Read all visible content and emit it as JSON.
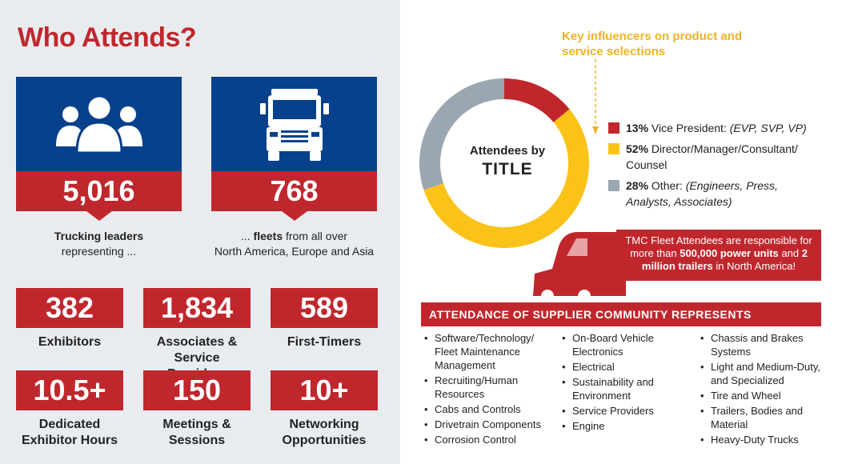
{
  "title": "Who Attends?",
  "cards": [
    {
      "icon": "people-group-icon",
      "number": "5,016",
      "caption_bold": "Trucking leaders",
      "caption_rest": "representing ..."
    },
    {
      "icon": "truck-front-icon",
      "number": "768",
      "caption_pre": "... ",
      "caption_bold": "fleets",
      "caption_rest": " from all over",
      "caption_line2": "North America, Europe and Asia"
    }
  ],
  "stats": [
    {
      "value": "382",
      "label": "Exhibitors"
    },
    {
      "value": "1,834",
      "label": "Associates & Service Providers"
    },
    {
      "value": "589",
      "label": "First-Timers"
    },
    {
      "value": "10.5+",
      "label": "Dedicated Exhibitor Hours"
    },
    {
      "value": "150",
      "label": "Meetings & Sessions"
    },
    {
      "value": "10+",
      "label": "Networking Opportunities"
    }
  ],
  "key_influencers": "Key influencers on product and service selections",
  "donut": {
    "label_line1": "Attendees by",
    "label_line2": "TITLE",
    "segments": [
      {
        "pct": "13%",
        "role": "Vice President:",
        "detail": "(EVP, SVP, VP)",
        "value": 13,
        "color": "#c0272d"
      },
      {
        "pct": "52%",
        "role": "Director/Manager/Consultant/ Counsel",
        "detail": "",
        "value": 52,
        "color": "#fbc218"
      },
      {
        "pct": "28%",
        "role": "Other:",
        "detail": "(Engineers, Press, Analysts, Associates)",
        "value": 28,
        "color": "#9aa6b1"
      }
    ]
  },
  "fleet_note": {
    "pre": "TMC Fleet Attendees are responsible for more than ",
    "b1": "500,000 power units",
    "mid": " and ",
    "b2": "2 million trailers",
    "post": " in North America!"
  },
  "supplier_title": "ATTENDANCE OF SUPPLIER COMMUNITY REPRESENTS",
  "supplier_columns": [
    [
      "Software/Technology/ Fleet Maintenance Management",
      "Recruiting/Human Resources",
      "Cabs and Controls",
      "Drivetrain Components",
      "Corrosion Control"
    ],
    [
      "On-Board Vehicle Electronics",
      "Electrical",
      "Sustainability and Environment",
      "Service Providers",
      "Engine"
    ],
    [
      "Chassis and Brakes Systems",
      "Light and Medium-Duty, and Specialized",
      "Tire and Wheel",
      "Trailers, Bodies and Material",
      "Heavy-Duty Trucks"
    ]
  ]
}
